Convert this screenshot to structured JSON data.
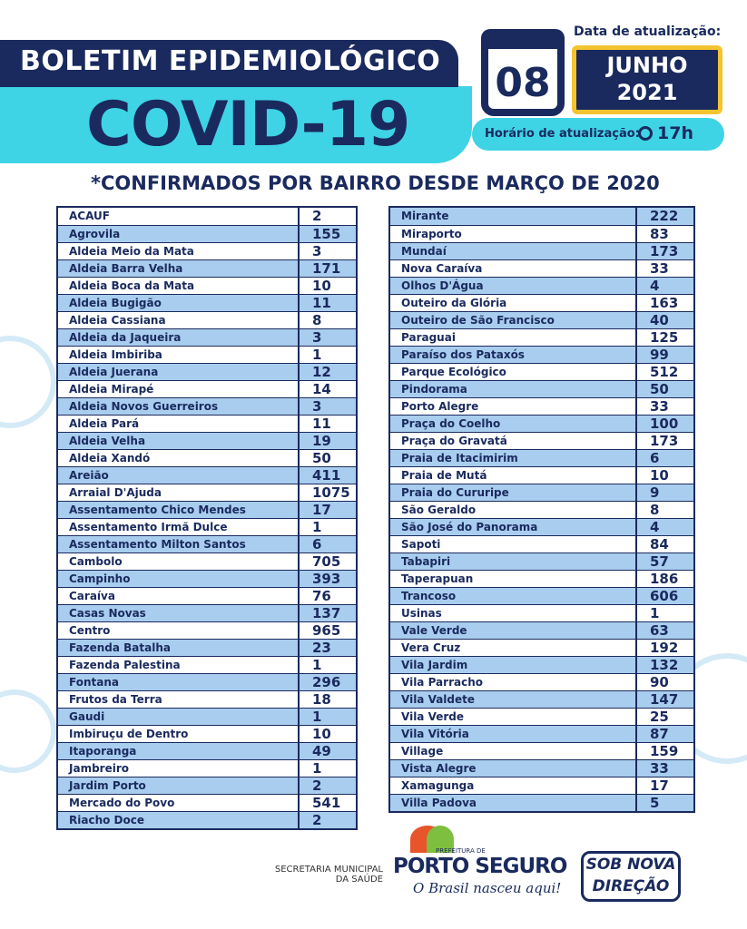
{
  "header": {
    "title": "BOLETIM EPIDEMIOLÓGICO",
    "subtitle": "COVID-19",
    "update_label": "Data de atualização:",
    "day": "08",
    "month": "JUNHO",
    "year": "2021",
    "time_label": "Horário de atualização:",
    "time": "17h"
  },
  "table_heading": "*CONFIRMADOS POR BAIRRO DESDE MARÇO DE 2020",
  "left_table": {
    "rows": [
      [
        "ACAUF",
        2
      ],
      [
        "Agrovila",
        155
      ],
      [
        "Aldeia Meio da Mata",
        3
      ],
      [
        "Aldeia Barra Velha",
        171
      ],
      [
        "Aldeia Boca da Mata",
        10
      ],
      [
        "Aldeia Bugigão",
        11
      ],
      [
        "Aldeia Cassiana",
        8
      ],
      [
        "Aldeia da Jaqueira",
        3
      ],
      [
        "Aldeia Imbiriba",
        1
      ],
      [
        "Aldeia Juerana",
        12
      ],
      [
        "Aldeia Mirapé",
        14
      ],
      [
        "Aldeia Novos Guerreiros",
        3
      ],
      [
        "Aldeia Pará",
        11
      ],
      [
        "Aldeia Velha",
        19
      ],
      [
        "Aldeia Xandó",
        50
      ],
      [
        "Areião",
        411
      ],
      [
        "Arraial D'Ajuda",
        1075
      ],
      [
        "Assentamento Chico Mendes",
        17
      ],
      [
        "Assentamento Irmã Dulce",
        1
      ],
      [
        "Assentamento Milton Santos",
        6
      ],
      [
        "Cambolo",
        705
      ],
      [
        "Campinho",
        393
      ],
      [
        "Caraíva",
        76
      ],
      [
        "Casas Novas",
        137
      ],
      [
        "Centro",
        965
      ],
      [
        "Fazenda Batalha",
        23
      ],
      [
        "Fazenda Palestina",
        1
      ],
      [
        "Fontana",
        296
      ],
      [
        "Frutos da Terra",
        18
      ],
      [
        "Gaudi",
        1
      ],
      [
        "Imbiruçu de Dentro",
        10
      ],
      [
        "Itaporanga",
        49
      ],
      [
        "Jambreiro",
        1
      ],
      [
        "Jardim Porto",
        2
      ],
      [
        "Mercado do Povo",
        541
      ],
      [
        "Riacho Doce",
        2
      ]
    ]
  },
  "right_table": {
    "rows": [
      [
        "Mirante",
        222
      ],
      [
        "Miraporto",
        83
      ],
      [
        "Mundaí",
        173
      ],
      [
        "Nova Caraíva",
        33
      ],
      [
        "Olhos D'Água",
        4
      ],
      [
        "Outeiro da Glória",
        163
      ],
      [
        "Outeiro de São Francisco",
        40
      ],
      [
        "Paraguai",
        125
      ],
      [
        "Paraíso dos Pataxós",
        99
      ],
      [
        "Parque Ecológico",
        512
      ],
      [
        "Pindorama",
        50
      ],
      [
        "Porto Alegre",
        33
      ],
      [
        "Praça do Coelho",
        100
      ],
      [
        "Praça do Gravatá",
        173
      ],
      [
        "Praia de Itacimirim",
        6
      ],
      [
        "Praia de Mutá",
        10
      ],
      [
        "Praia do Cururipe",
        9
      ],
      [
        "São Geraldo",
        8
      ],
      [
        "São José do Panorama",
        4
      ],
      [
        "Sapoti",
        84
      ],
      [
        "Tabapiri",
        57
      ],
      [
        "Taperapuan",
        186
      ],
      [
        "Trancoso",
        606
      ],
      [
        "Usinas",
        1
      ],
      [
        "Vale Verde",
        63
      ],
      [
        "Vera Cruz",
        192
      ],
      [
        "Vila Jardim",
        132
      ],
      [
        "Vila Parracho",
        90
      ],
      [
        "Vila Valdete",
        147
      ],
      [
        "Vila Verde",
        25
      ],
      [
        "Vila Vitória",
        87
      ],
      [
        "Village",
        159
      ],
      [
        "Vista Alegre",
        33
      ],
      [
        "Xamagunga",
        17
      ],
      [
        "Villa Padova",
        5
      ]
    ]
  },
  "footer": {
    "secretaria_line1": "SECRETARIA MUNICIPAL",
    "secretaria_line2": "DA SAÚDE",
    "prefeitura": "PREFEITURA DE",
    "city": "PORTO SEGURO",
    "slogan": "O Brasil nasceu aqui!",
    "badge_line1": "SOB NOVA",
    "badge_line2": "DIREÇÃO"
  }
}
